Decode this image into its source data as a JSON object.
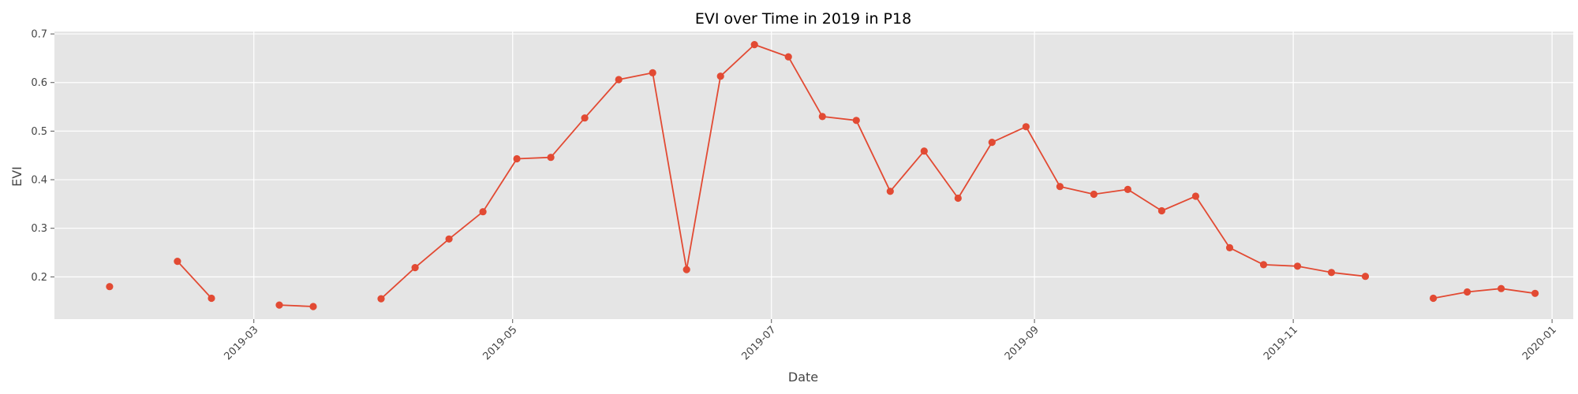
{
  "chart_data": {
    "type": "line",
    "title": "EVI over Time in 2019 in P18",
    "xlabel": "Date",
    "ylabel": "EVI",
    "xlim": [
      "2019-01-13",
      "2020-01-06"
    ],
    "ylim": [
      0.113,
      0.705
    ],
    "grid": true,
    "style": {
      "plot_bg": "#e5e5e5",
      "grid": "#ffffff",
      "line": "#e24a33",
      "marker": "#e24a33"
    },
    "x_ticks": [
      "2019-03",
      "2019-05",
      "2019-07",
      "2019-09",
      "2019-11",
      "2020-01"
    ],
    "x_tick_dates": [
      "2019-03-01",
      "2019-05-01",
      "2019-07-01",
      "2019-09-01",
      "2019-11-01",
      "2020-01-01"
    ],
    "y_ticks": [
      0.2,
      0.3,
      0.4,
      0.5,
      0.6,
      0.7
    ],
    "y_tick_labels": [
      "0.2",
      "0.3",
      "0.4",
      "0.5",
      "0.6",
      "0.7"
    ],
    "series": [
      {
        "segments": [
          [
            [
              "2019-01-26",
              0.18
            ]
          ],
          [
            [
              "2019-02-11",
              0.232
            ],
            [
              "2019-02-19",
              0.156
            ]
          ],
          [
            [
              "2019-03-07",
              0.142
            ],
            [
              "2019-03-15",
              0.139
            ]
          ],
          [
            [
              "2019-03-31",
              0.155
            ],
            [
              "2019-04-08",
              0.219
            ],
            [
              "2019-04-16",
              0.278
            ],
            [
              "2019-04-24",
              0.334
            ],
            [
              "2019-05-02",
              0.443
            ],
            [
              "2019-05-10",
              0.446
            ],
            [
              "2019-05-18",
              0.527
            ],
            [
              "2019-05-26",
              0.606
            ],
            [
              "2019-06-03",
              0.62
            ],
            [
              "2019-06-11",
              0.215
            ],
            [
              "2019-06-19",
              0.613
            ],
            [
              "2019-06-27",
              0.678
            ],
            [
              "2019-07-05",
              0.653
            ],
            [
              "2019-07-13",
              0.53
            ],
            [
              "2019-07-21",
              0.522
            ],
            [
              "2019-07-29",
              0.376
            ],
            [
              "2019-08-06",
              0.459
            ],
            [
              "2019-08-14",
              0.362
            ],
            [
              "2019-08-22",
              0.477
            ],
            [
              "2019-08-30",
              0.509
            ],
            [
              "2019-09-07",
              0.386
            ],
            [
              "2019-09-15",
              0.37
            ],
            [
              "2019-09-23",
              0.38
            ],
            [
              "2019-10-01",
              0.336
            ],
            [
              "2019-10-09",
              0.366
            ],
            [
              "2019-10-17",
              0.26
            ],
            [
              "2019-10-25",
              0.225
            ],
            [
              "2019-11-02",
              0.222
            ],
            [
              "2019-11-10",
              0.209
            ],
            [
              "2019-11-18",
              0.201
            ]
          ],
          [
            [
              "2019-12-04",
              0.156
            ],
            [
              "2019-12-12",
              0.169
            ],
            [
              "2019-12-20",
              0.176
            ],
            [
              "2019-12-28",
              0.166
            ]
          ]
        ]
      }
    ]
  }
}
